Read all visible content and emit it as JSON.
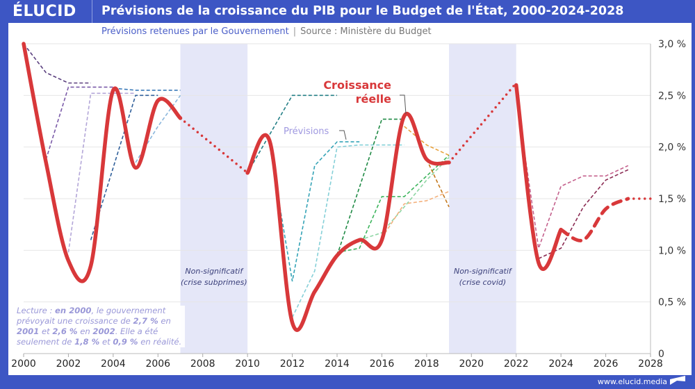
{
  "header": {
    "logo": "ÉLUCID",
    "title": "Prévisions de la croissance du PIB pour le Budget de l'État, 2000-2024-2028",
    "subtitle": "Prévisions retenues par le Gouvernement",
    "source": "Source : Ministère du Budget"
  },
  "note": {
    "parts": [
      "Lecture : ",
      "en 2000",
      ", le gouvernement prévoyait une croissance de ",
      "2,7 %",
      " en ",
      "2001",
      " et ",
      "2,6 %",
      " en ",
      "2002",
      ". Elle a été seulement de ",
      "1,8 %",
      " et ",
      "0,9 %",
      " en réalité."
    ]
  },
  "footer": {
    "url": "www.elucid.media"
  },
  "chart_data": {
    "type": "line",
    "title": "Prévisions de la croissance du PIB pour le Budget de l'État, 2000-2024-2028",
    "xlim": [
      2000,
      2028
    ],
    "ylim": [
      0,
      3.0
    ],
    "x_ticks": [
      "2000",
      "2002",
      "2004",
      "2006",
      "2008",
      "2010",
      "2012",
      "2014",
      "2016",
      "2018",
      "2020",
      "2022",
      "2024",
      "2026",
      "2028"
    ],
    "y_ticks": [
      "0",
      "0,5 %",
      "1,0 %",
      "1,5 %",
      "2,0 %",
      "2,5 %",
      "3,0 %"
    ],
    "y_tick_values": [
      0,
      0.5,
      1.0,
      1.5,
      2.0,
      2.5,
      3.0
    ],
    "grid": true,
    "y_axis_side": "right",
    "shaded_periods": [
      {
        "from": 2007,
        "to": 2010,
        "label1": "Non-significatif",
        "label2": "(crise subprimes)"
      },
      {
        "from": 2019,
        "to": 2022,
        "label1": "Non-significatif",
        "label2": "(crise covid)"
      }
    ],
    "annotations": {
      "actual_label1": "Croissance",
      "actual_label2": "réelle",
      "forecast_label": "Prévisions"
    },
    "actual": {
      "color": "#d8383a",
      "segments": [
        {
          "style": "solid",
          "points": [
            [
              2000,
              3.0
            ],
            [
              2001,
              1.85
            ],
            [
              2002,
              0.9
            ],
            [
              2003,
              0.85
            ],
            [
              2004,
              2.55
            ],
            [
              2005,
              1.8
            ],
            [
              2006,
              2.45
            ],
            [
              2007,
              2.28
            ]
          ]
        },
        {
          "style": "dotted",
          "points": [
            [
              2007,
              2.28
            ],
            [
              2010,
              1.75
            ]
          ]
        },
        {
          "style": "solid",
          "points": [
            [
              2010,
              1.75
            ],
            [
              2011,
              2.05
            ],
            [
              2012,
              0.3
            ],
            [
              2013,
              0.6
            ],
            [
              2014,
              0.95
            ],
            [
              2015,
              1.1
            ],
            [
              2016,
              1.1
            ],
            [
              2017,
              2.3
            ],
            [
              2018,
              1.88
            ],
            [
              2019,
              1.85
            ]
          ]
        },
        {
          "style": "dotted",
          "points": [
            [
              2019,
              1.85
            ],
            [
              2022,
              2.62
            ]
          ]
        },
        {
          "style": "solid",
          "points": [
            [
              2022,
              2.6
            ],
            [
              2023,
              0.88
            ],
            [
              2024,
              1.2
            ]
          ]
        },
        {
          "style": "dashed",
          "points": [
            [
              2024,
              1.2
            ],
            [
              2025,
              1.1
            ],
            [
              2026,
              1.4
            ],
            [
              2027,
              1.5
            ]
          ]
        },
        {
          "style": "dotted",
          "points": [
            [
              2027,
              1.5
            ],
            [
              2028,
              1.5
            ]
          ]
        }
      ]
    },
    "forecasts": [
      {
        "color": "#5a3f7e",
        "points": [
          [
            2000,
            3.0
          ],
          [
            2001,
            2.72
          ],
          [
            2002,
            2.62
          ],
          [
            2003,
            2.62
          ]
        ]
      },
      {
        "color": "#7a5aa8",
        "points": [
          [
            2001,
            1.88
          ],
          [
            2002,
            2.58
          ],
          [
            2003,
            2.58
          ],
          [
            2004,
            2.58
          ]
        ]
      },
      {
        "color": "#b3a6d8",
        "points": [
          [
            2002,
            0.98
          ],
          [
            2003,
            2.52
          ],
          [
            2004,
            2.52
          ],
          [
            2005,
            2.52
          ]
        ]
      },
      {
        "color": "#2f5f9a",
        "points": [
          [
            2003,
            1.1
          ],
          [
            2005,
            2.5
          ],
          [
            2006,
            2.5
          ]
        ]
      },
      {
        "color": "#3a7ab8",
        "points": [
          [
            2004,
            2.57
          ],
          [
            2005,
            2.55
          ],
          [
            2006,
            2.55
          ],
          [
            2007,
            2.55
          ]
        ]
      },
      {
        "color": "#8ab6dc",
        "points": [
          [
            2005,
            1.85
          ],
          [
            2006,
            2.2
          ],
          [
            2007,
            2.5
          ]
        ]
      },
      {
        "color": "#237f86",
        "points": [
          [
            2010,
            1.75
          ],
          [
            2012,
            2.5
          ],
          [
            2013,
            2.5
          ],
          [
            2014,
            2.5
          ]
        ]
      },
      {
        "color": "#34a3b6",
        "points": [
          [
            2011,
            2.0
          ],
          [
            2012,
            0.7
          ],
          [
            2013,
            1.82
          ],
          [
            2014,
            2.05
          ],
          [
            2015,
            2.05
          ]
        ]
      },
      {
        "color": "#86d0d8",
        "points": [
          [
            2012,
            0.35
          ],
          [
            2013,
            0.8
          ],
          [
            2014,
            2.0
          ],
          [
            2015,
            2.02
          ],
          [
            2016,
            2.02
          ],
          [
            2017,
            2.02
          ]
        ]
      },
      {
        "color": "#1f8a45",
        "points": [
          [
            2014,
            0.95
          ],
          [
            2016,
            2.27
          ],
          [
            2017,
            2.27
          ]
        ]
      },
      {
        "color": "#3cb45c",
        "points": [
          [
            2014,
            0.98
          ],
          [
            2015,
            1.02
          ],
          [
            2016,
            1.52
          ],
          [
            2017,
            1.52
          ],
          [
            2018,
            1.72
          ],
          [
            2019,
            1.92
          ]
        ]
      },
      {
        "color": "#8fd6a4",
        "points": [
          [
            2015,
            1.1
          ],
          [
            2016,
            1.17
          ],
          [
            2017,
            1.42
          ],
          [
            2018,
            1.68
          ],
          [
            2019,
            1.9
          ]
        ]
      },
      {
        "color": "#f3b07c",
        "points": [
          [
            2016,
            1.12
          ],
          [
            2017,
            1.45
          ],
          [
            2018,
            1.48
          ],
          [
            2019,
            1.57
          ]
        ]
      },
      {
        "color": "#e8a23c",
        "points": [
          [
            2017,
            2.2
          ],
          [
            2018,
            2.02
          ],
          [
            2019,
            1.92
          ]
        ]
      },
      {
        "color": "#c4781c",
        "points": [
          [
            2018,
            1.88
          ],
          [
            2019,
            1.42
          ]
        ]
      },
      {
        "color": "#c4608c",
        "points": [
          [
            2022,
            2.5
          ],
          [
            2023,
            1.02
          ],
          [
            2024,
            1.62
          ],
          [
            2025,
            1.72
          ],
          [
            2026,
            1.72
          ],
          [
            2027,
            1.82
          ]
        ]
      },
      {
        "color": "#8a2a52",
        "points": [
          [
            2023,
            0.92
          ],
          [
            2024,
            1.02
          ],
          [
            2025,
            1.42
          ],
          [
            2026,
            1.68
          ],
          [
            2027,
            1.78
          ]
        ]
      }
    ]
  }
}
